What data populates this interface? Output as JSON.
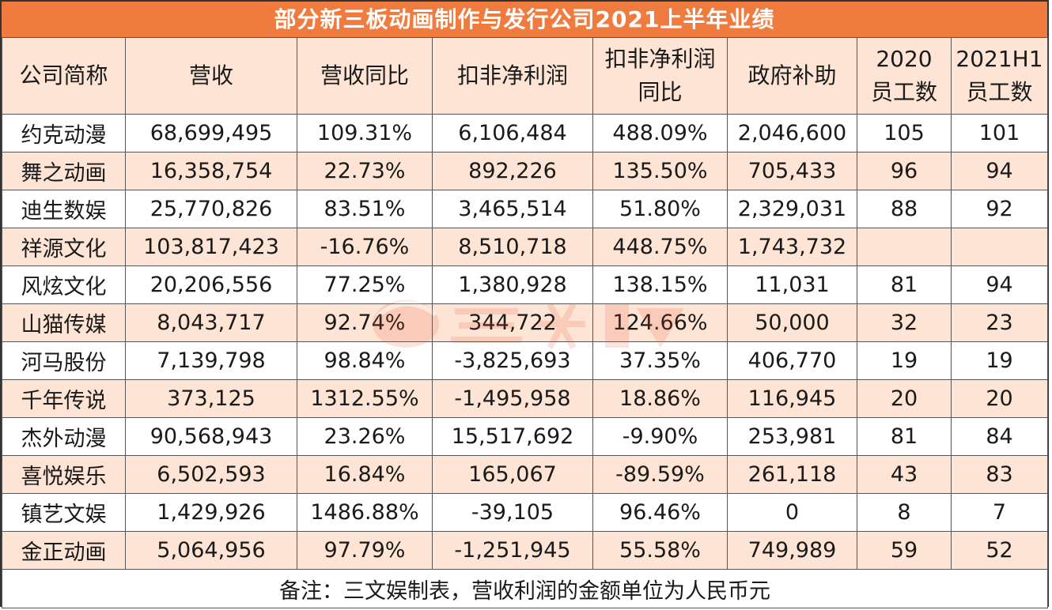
{
  "title": "部分新三板动画制作与发行公司2021上半年业绩",
  "headers": [
    "公司简称",
    "营收",
    "营收同比",
    "扣非净利润",
    "扣非净利润\n同比",
    "政府补助",
    "2020\n员工数",
    "2021H1\n员工数"
  ],
  "rows": [
    [
      "约克动漫",
      "68,699,495",
      "109.31%",
      "6,106,484",
      "488.09%",
      "2,046,600",
      "105",
      "101"
    ],
    [
      "舞之动画",
      "16,358,754",
      "22.73%",
      "892,226",
      "135.50%",
      "705,433",
      "96",
      "94"
    ],
    [
      "迪生数娱",
      "25,770,826",
      "83.51%",
      "3,465,514",
      "51.80%",
      "2,329,031",
      "88",
      "92"
    ],
    [
      "祥源文化",
      "103,817,423",
      "-16.76%",
      "8,510,718",
      "448.75%",
      "1,743,732",
      "",
      ""
    ],
    [
      "风炫文化",
      "20,206,556",
      "77.25%",
      "1,380,928",
      "138.15%",
      "11,031",
      "81",
      "94"
    ],
    [
      "山猫传媒",
      "8,043,717",
      "92.74%",
      "344,722",
      "124.66%",
      "50,000",
      "32",
      "23"
    ],
    [
      "河马股份",
      "7,139,798",
      "98.84%",
      "-3,825,693",
      "37.35%",
      "406,770",
      "19",
      "19"
    ],
    [
      "千年传说",
      "373,125",
      "1312.55%",
      "-1,495,958",
      "18.86%",
      "116,945",
      "20",
      "20"
    ],
    [
      "杰外动漫",
      "90,568,943",
      "23.26%",
      "15,517,692",
      "-9.90%",
      "253,981",
      "81",
      "84"
    ],
    [
      "喜悦娱乐",
      "6,502,593",
      "16.84%",
      "165,067",
      "-89.59%",
      "261,118",
      "43",
      "83"
    ],
    [
      "镇艺文娱",
      "1,429,926",
      "1486.88%",
      "-39,105",
      "96.46%",
      "0",
      "8",
      "7"
    ],
    [
      "金正动画",
      "5,064,956",
      "97.79%",
      "-1,251,945",
      "55.58%",
      "749,989",
      "59",
      "52"
    ]
  ],
  "note": "备注：三文娱制表，营收利润的金额单位为人民币元",
  "colors": {
    "title_bg": "#f07b3f",
    "stripe_bg": "#fde4d4",
    "watermark": "#e8502a"
  }
}
